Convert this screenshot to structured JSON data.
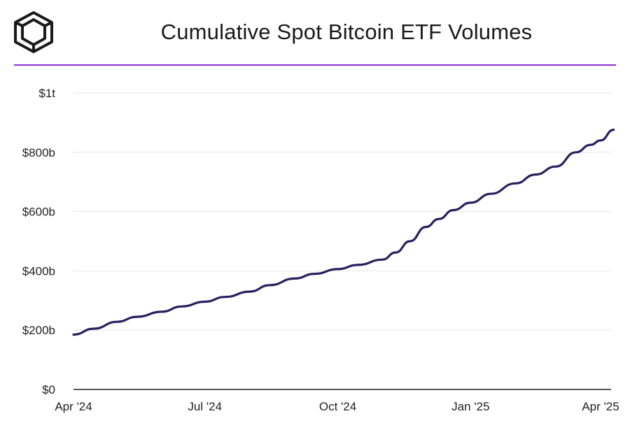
{
  "header": {
    "title": "Cumulative Spot Bitcoin ETF Volumes",
    "logo_icon": "cube-logo-icon"
  },
  "colors": {
    "accent_divider": "#8b2fd6",
    "line": "#2b1f5e",
    "grid": "#e6e6e6",
    "axis": "#222222"
  },
  "chart_data": {
    "type": "line",
    "title": "Cumulative Spot Bitcoin ETF Volumes",
    "xlabel": "",
    "ylabel": "",
    "x_unit": "date",
    "y_unit": "billions USD",
    "xlim": [
      "2024-04-01",
      "2025-04-10"
    ],
    "ylim": [
      0,
      1000
    ],
    "grid": true,
    "legend": "none",
    "x_ticks": [
      {
        "date": "2024-04-01",
        "label": "Apr '24"
      },
      {
        "date": "2024-07-01",
        "label": "Jul '24"
      },
      {
        "date": "2024-10-01",
        "label": "Oct '24"
      },
      {
        "date": "2025-01-01",
        "label": "Jan '25"
      },
      {
        "date": "2025-04-01",
        "label": "Apr '25"
      }
    ],
    "y_ticks": [
      {
        "value": 0,
        "label": "$0"
      },
      {
        "value": 200,
        "label": "$200b"
      },
      {
        "value": 400,
        "label": "$400b"
      },
      {
        "value": 600,
        "label": "$600b"
      },
      {
        "value": 800,
        "label": "$800b"
      },
      {
        "value": 1000,
        "label": "$1t"
      }
    ],
    "series": [
      {
        "values": [
          {
            "x": "2024-04-01",
            "y": 185
          },
          {
            "x": "2024-04-15",
            "y": 205
          },
          {
            "x": "2024-05-01",
            "y": 228
          },
          {
            "x": "2024-05-15",
            "y": 245
          },
          {
            "x": "2024-06-01",
            "y": 262
          },
          {
            "x": "2024-06-15",
            "y": 280
          },
          {
            "x": "2024-07-01",
            "y": 296
          },
          {
            "x": "2024-07-15",
            "y": 312
          },
          {
            "x": "2024-08-01",
            "y": 330
          },
          {
            "x": "2024-08-15",
            "y": 352
          },
          {
            "x": "2024-09-01",
            "y": 374
          },
          {
            "x": "2024-09-15",
            "y": 390
          },
          {
            "x": "2024-10-01",
            "y": 406
          },
          {
            "x": "2024-10-15",
            "y": 420
          },
          {
            "x": "2024-11-01",
            "y": 438
          },
          {
            "x": "2024-11-10",
            "y": 462
          },
          {
            "x": "2024-11-20",
            "y": 500
          },
          {
            "x": "2024-12-01",
            "y": 548
          },
          {
            "x": "2024-12-10",
            "y": 575
          },
          {
            "x": "2024-12-20",
            "y": 605
          },
          {
            "x": "2025-01-01",
            "y": 630
          },
          {
            "x": "2025-01-15",
            "y": 660
          },
          {
            "x": "2025-02-01",
            "y": 695
          },
          {
            "x": "2025-02-15",
            "y": 725
          },
          {
            "x": "2025-03-01",
            "y": 752
          },
          {
            "x": "2025-03-15",
            "y": 800
          },
          {
            "x": "2025-03-25",
            "y": 825
          },
          {
            "x": "2025-04-01",
            "y": 840
          },
          {
            "x": "2025-04-10",
            "y": 876
          }
        ]
      }
    ]
  }
}
